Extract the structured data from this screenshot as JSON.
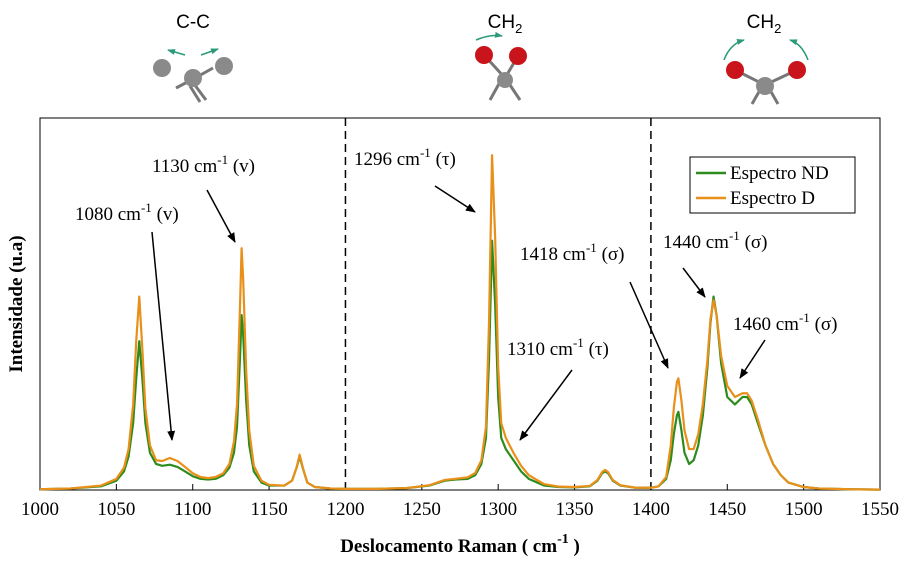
{
  "chart_data": {
    "type": "line",
    "xlabel": {
      "text": "Deslocamento Raman ( cm",
      "sup": "-1",
      "tail": " )"
    },
    "ylabel": "Intensidade (u.a)",
    "icons": [
      {
        "label": "C-C"
      },
      {
        "label": "CH",
        "sub": "2"
      },
      {
        "label": "CH",
        "sub": "2"
      }
    ],
    "xlim": [
      1000,
      1550
    ],
    "xticks": [
      1000,
      1050,
      1100,
      1150,
      1200,
      1250,
      1300,
      1350,
      1400,
      1450,
      1500,
      1550
    ],
    "ylim": [
      0,
      1
    ],
    "dividers": [
      1200,
      1400
    ],
    "legend": "upper right",
    "x": [
      1000,
      1020,
      1040,
      1050,
      1055,
      1058,
      1061,
      1063,
      1065,
      1067,
      1069,
      1072,
      1076,
      1080,
      1085,
      1090,
      1095,
      1100,
      1105,
      1110,
      1115,
      1120,
      1124,
      1127,
      1129,
      1131,
      1132,
      1133,
      1135,
      1137,
      1140,
      1145,
      1150,
      1160,
      1165,
      1168,
      1170,
      1172,
      1175,
      1180,
      1190,
      1200,
      1220,
      1240,
      1255,
      1265,
      1272,
      1280,
      1285,
      1289,
      1292,
      1294,
      1296,
      1298,
      1300,
      1302,
      1305,
      1310,
      1315,
      1320,
      1330,
      1340,
      1350,
      1360,
      1365,
      1368,
      1370,
      1372,
      1375,
      1380,
      1390,
      1400,
      1405,
      1410,
      1413,
      1415,
      1417,
      1418,
      1420,
      1422,
      1425,
      1428,
      1431,
      1434,
      1437,
      1439,
      1441,
      1443,
      1446,
      1450,
      1455,
      1460,
      1463,
      1466,
      1470,
      1475,
      1480,
      1485,
      1490,
      1500,
      1510,
      1530,
      1550
    ],
    "series": [
      {
        "name": "Espectro ND",
        "color": "#2e8b1e",
        "values": [
          0.002,
          0.004,
          0.01,
          0.025,
          0.05,
          0.09,
          0.18,
          0.3,
          0.4,
          0.3,
          0.18,
          0.1,
          0.07,
          0.065,
          0.068,
          0.062,
          0.05,
          0.037,
          0.03,
          0.028,
          0.03,
          0.04,
          0.06,
          0.1,
          0.17,
          0.36,
          0.47,
          0.42,
          0.24,
          0.12,
          0.05,
          0.02,
          0.012,
          0.012,
          0.025,
          0.06,
          0.09,
          0.06,
          0.02,
          0.008,
          0.004,
          0.003,
          0.003,
          0.005,
          0.012,
          0.025,
          0.028,
          0.03,
          0.04,
          0.07,
          0.14,
          0.35,
          0.67,
          0.5,
          0.25,
          0.14,
          0.11,
          0.08,
          0.05,
          0.03,
          0.012,
          0.008,
          0.007,
          0.01,
          0.025,
          0.045,
          0.05,
          0.045,
          0.025,
          0.012,
          0.006,
          0.006,
          0.01,
          0.03,
          0.08,
          0.15,
          0.2,
          0.21,
          0.16,
          0.1,
          0.07,
          0.08,
          0.12,
          0.2,
          0.33,
          0.45,
          0.52,
          0.47,
          0.34,
          0.25,
          0.23,
          0.25,
          0.25,
          0.23,
          0.18,
          0.12,
          0.07,
          0.04,
          0.02,
          0.008,
          0.004,
          0.002,
          0.001
        ]
      },
      {
        "name": "Espectro D",
        "color": "#e8901a",
        "values": [
          0.002,
          0.004,
          0.012,
          0.03,
          0.06,
          0.11,
          0.23,
          0.4,
          0.52,
          0.38,
          0.22,
          0.12,
          0.08,
          0.078,
          0.086,
          0.078,
          0.062,
          0.045,
          0.035,
          0.032,
          0.035,
          0.045,
          0.07,
          0.13,
          0.23,
          0.5,
          0.65,
          0.57,
          0.32,
          0.16,
          0.065,
          0.025,
          0.014,
          0.012,
          0.025,
          0.06,
          0.095,
          0.062,
          0.02,
          0.008,
          0.004,
          0.003,
          0.003,
          0.005,
          0.013,
          0.027,
          0.03,
          0.034,
          0.046,
          0.08,
          0.17,
          0.45,
          0.9,
          0.68,
          0.33,
          0.18,
          0.14,
          0.1,
          0.065,
          0.04,
          0.016,
          0.009,
          0.008,
          0.011,
          0.027,
          0.048,
          0.054,
          0.048,
          0.027,
          0.013,
          0.006,
          0.006,
          0.01,
          0.035,
          0.12,
          0.22,
          0.29,
          0.3,
          0.24,
          0.16,
          0.11,
          0.11,
          0.15,
          0.23,
          0.35,
          0.46,
          0.51,
          0.47,
          0.36,
          0.28,
          0.25,
          0.26,
          0.26,
          0.24,
          0.19,
          0.12,
          0.07,
          0.04,
          0.02,
          0.008,
          0.004,
          0.002,
          0.001
        ]
      }
    ],
    "annotations": [
      {
        "text": "1080 cm",
        "sup": "-1",
        "mode": " (v)"
      },
      {
        "text": "1130 cm",
        "sup": "-1",
        "mode": " (v)"
      },
      {
        "text": "1296 cm",
        "sup": "-1",
        "mode": " (τ)"
      },
      {
        "text": "1310 cm",
        "sup": "-1",
        "mode": " (τ)"
      },
      {
        "text": "1418 cm",
        "sup": "-1",
        "mode": " (σ)"
      },
      {
        "text": "1440 cm",
        "sup": "-1",
        "mode": " (σ)"
      },
      {
        "text": "1460 cm",
        "sup": "-1",
        "mode": " (σ)"
      }
    ]
  }
}
